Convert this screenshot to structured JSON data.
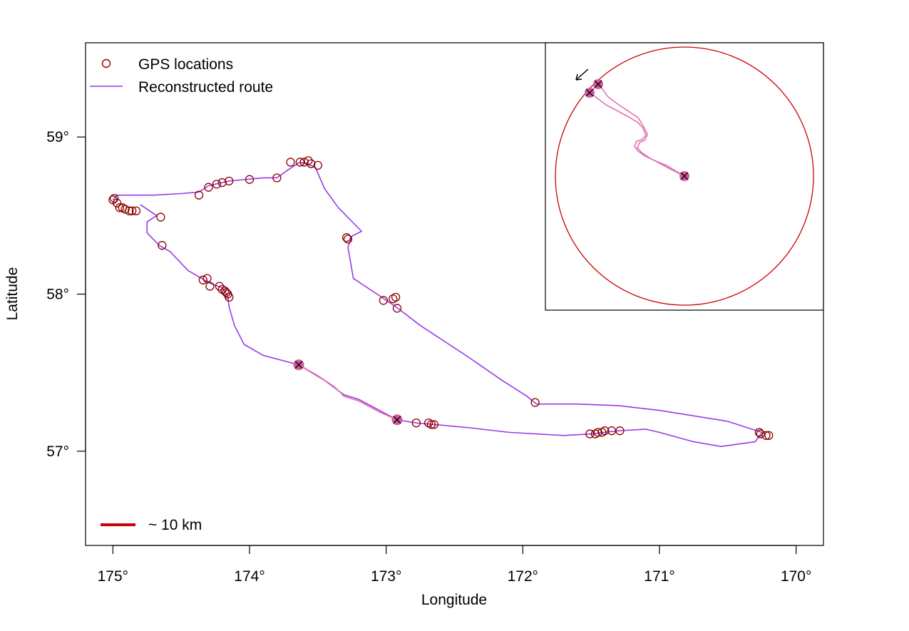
{
  "colors": {
    "route": "#9a3ae6",
    "route_highlight": "#e070b4",
    "gps": "#8b0000",
    "marker": "#d45a9c",
    "scale_bar": "#cc0000",
    "inset_circle": "#cc0000"
  },
  "chart_data": {
    "type": "scatter",
    "xlabel": "Longitude",
    "ylabel": "Latitude",
    "xlim": [
      175.2,
      169.8
    ],
    "ylim": [
      56.4,
      59.6
    ],
    "x_reversed": true,
    "x_ticks": [
      175,
      174,
      173,
      172,
      171,
      170
    ],
    "x_tick_labels": [
      "175°",
      "174°",
      "173°",
      "172°",
      "171°",
      "170°"
    ],
    "y_ticks": [
      57,
      58,
      59
    ],
    "y_tick_labels": [
      "57°",
      "58°",
      "59°"
    ],
    "legend": {
      "position": "top-left",
      "entries": [
        {
          "label": "GPS locations",
          "symbol": "open-circle"
        },
        {
          "label": "Reconstructed route",
          "symbol": "line"
        }
      ]
    },
    "scale_bar_label": "~ 10 km",
    "series": [
      {
        "name": "GPS locations",
        "points": [
          [
            175.0,
            58.6
          ],
          [
            174.99,
            58.61
          ],
          [
            174.97,
            58.58
          ],
          [
            174.95,
            58.55
          ],
          [
            174.93,
            58.55
          ],
          [
            174.91,
            58.54
          ],
          [
            174.88,
            58.53
          ],
          [
            174.86,
            58.53
          ],
          [
            174.83,
            58.53
          ],
          [
            174.65,
            58.49
          ],
          [
            174.64,
            58.31
          ],
          [
            174.37,
            58.63
          ],
          [
            174.3,
            58.68
          ],
          [
            174.24,
            58.7
          ],
          [
            174.2,
            58.71
          ],
          [
            174.15,
            58.72
          ],
          [
            174.0,
            58.73
          ],
          [
            173.8,
            58.74
          ],
          [
            173.7,
            58.84
          ],
          [
            173.63,
            58.84
          ],
          [
            173.6,
            58.84
          ],
          [
            173.57,
            58.85
          ],
          [
            173.55,
            58.83
          ],
          [
            173.5,
            58.82
          ],
          [
            173.29,
            58.36
          ],
          [
            173.28,
            58.35
          ],
          [
            173.02,
            57.96
          ],
          [
            172.95,
            57.97
          ],
          [
            172.92,
            57.91
          ],
          [
            172.93,
            57.98
          ],
          [
            174.34,
            58.09
          ],
          [
            174.31,
            58.1
          ],
          [
            174.29,
            58.05
          ],
          [
            174.22,
            58.05
          ],
          [
            174.2,
            58.03
          ],
          [
            174.18,
            58.02
          ],
          [
            174.17,
            58.01
          ],
          [
            174.16,
            58.0
          ],
          [
            174.15,
            57.98
          ],
          [
            172.78,
            57.18
          ],
          [
            172.69,
            57.18
          ],
          [
            172.67,
            57.17
          ],
          [
            172.65,
            57.17
          ],
          [
            171.91,
            57.31
          ],
          [
            171.51,
            57.11
          ],
          [
            171.47,
            57.11
          ],
          [
            171.45,
            57.12
          ],
          [
            171.42,
            57.12
          ],
          [
            171.4,
            57.13
          ],
          [
            171.35,
            57.13
          ],
          [
            171.29,
            57.13
          ],
          [
            170.27,
            57.12
          ],
          [
            170.26,
            57.11
          ],
          [
            170.22,
            57.1
          ],
          [
            170.2,
            57.1
          ]
        ]
      },
      {
        "name": "Reconstructed route",
        "points": [
          [
            175.0,
            58.6
          ],
          [
            174.97,
            58.63
          ],
          [
            174.7,
            58.63
          ],
          [
            174.5,
            58.64
          ],
          [
            174.37,
            58.65
          ],
          [
            174.3,
            58.69
          ],
          [
            174.15,
            58.72
          ],
          [
            173.9,
            58.74
          ],
          [
            173.8,
            58.74
          ],
          [
            173.72,
            58.79
          ],
          [
            173.63,
            58.84
          ],
          [
            173.52,
            58.81
          ],
          [
            173.45,
            58.67
          ],
          [
            173.35,
            58.55
          ],
          [
            173.18,
            58.4
          ],
          [
            173.25,
            58.37
          ],
          [
            173.28,
            58.3
          ],
          [
            173.24,
            58.1
          ],
          [
            173.05,
            57.99
          ],
          [
            172.93,
            57.92
          ],
          [
            172.75,
            57.8
          ],
          [
            172.4,
            57.6
          ],
          [
            172.15,
            57.45
          ],
          [
            171.97,
            57.35
          ],
          [
            171.9,
            57.3
          ],
          [
            171.6,
            57.3
          ],
          [
            171.3,
            57.29
          ],
          [
            171.0,
            57.26
          ],
          [
            170.5,
            57.19
          ],
          [
            170.25,
            57.12
          ],
          [
            170.3,
            57.06
          ],
          [
            170.55,
            57.03
          ],
          [
            170.75,
            57.06
          ],
          [
            171.0,
            57.12
          ],
          [
            171.1,
            57.14
          ],
          [
            171.3,
            57.13
          ],
          [
            171.5,
            57.11
          ],
          [
            171.7,
            57.1
          ],
          [
            172.1,
            57.12
          ],
          [
            172.4,
            57.15
          ],
          [
            172.65,
            57.17
          ],
          [
            172.78,
            57.18
          ],
          [
            172.92,
            57.2
          ],
          [
            173.2,
            57.33
          ],
          [
            173.31,
            57.36
          ],
          [
            173.45,
            57.45
          ],
          [
            173.64,
            57.55
          ],
          [
            173.9,
            57.61
          ],
          [
            174.04,
            57.68
          ],
          [
            174.11,
            57.8
          ],
          [
            174.15,
            57.92
          ],
          [
            174.16,
            57.99
          ],
          [
            174.2,
            58.04
          ],
          [
            174.29,
            58.07
          ],
          [
            174.45,
            58.15
          ],
          [
            174.58,
            58.27
          ],
          [
            174.66,
            58.31
          ],
          [
            174.75,
            58.39
          ],
          [
            174.75,
            58.46
          ],
          [
            174.68,
            58.5
          ],
          [
            174.8,
            58.57
          ]
        ]
      },
      {
        "name": "Highlighted segment",
        "points": [
          [
            173.64,
            57.55
          ],
          [
            173.5,
            57.48
          ],
          [
            173.38,
            57.41
          ],
          [
            173.33,
            57.37
          ],
          [
            173.31,
            57.35
          ],
          [
            173.2,
            57.32
          ],
          [
            173.05,
            57.25
          ],
          [
            172.92,
            57.2
          ]
        ]
      },
      {
        "name": "Marked positions",
        "points": [
          [
            173.64,
            57.55
          ],
          [
            172.92,
            57.2
          ]
        ]
      }
    ]
  }
}
